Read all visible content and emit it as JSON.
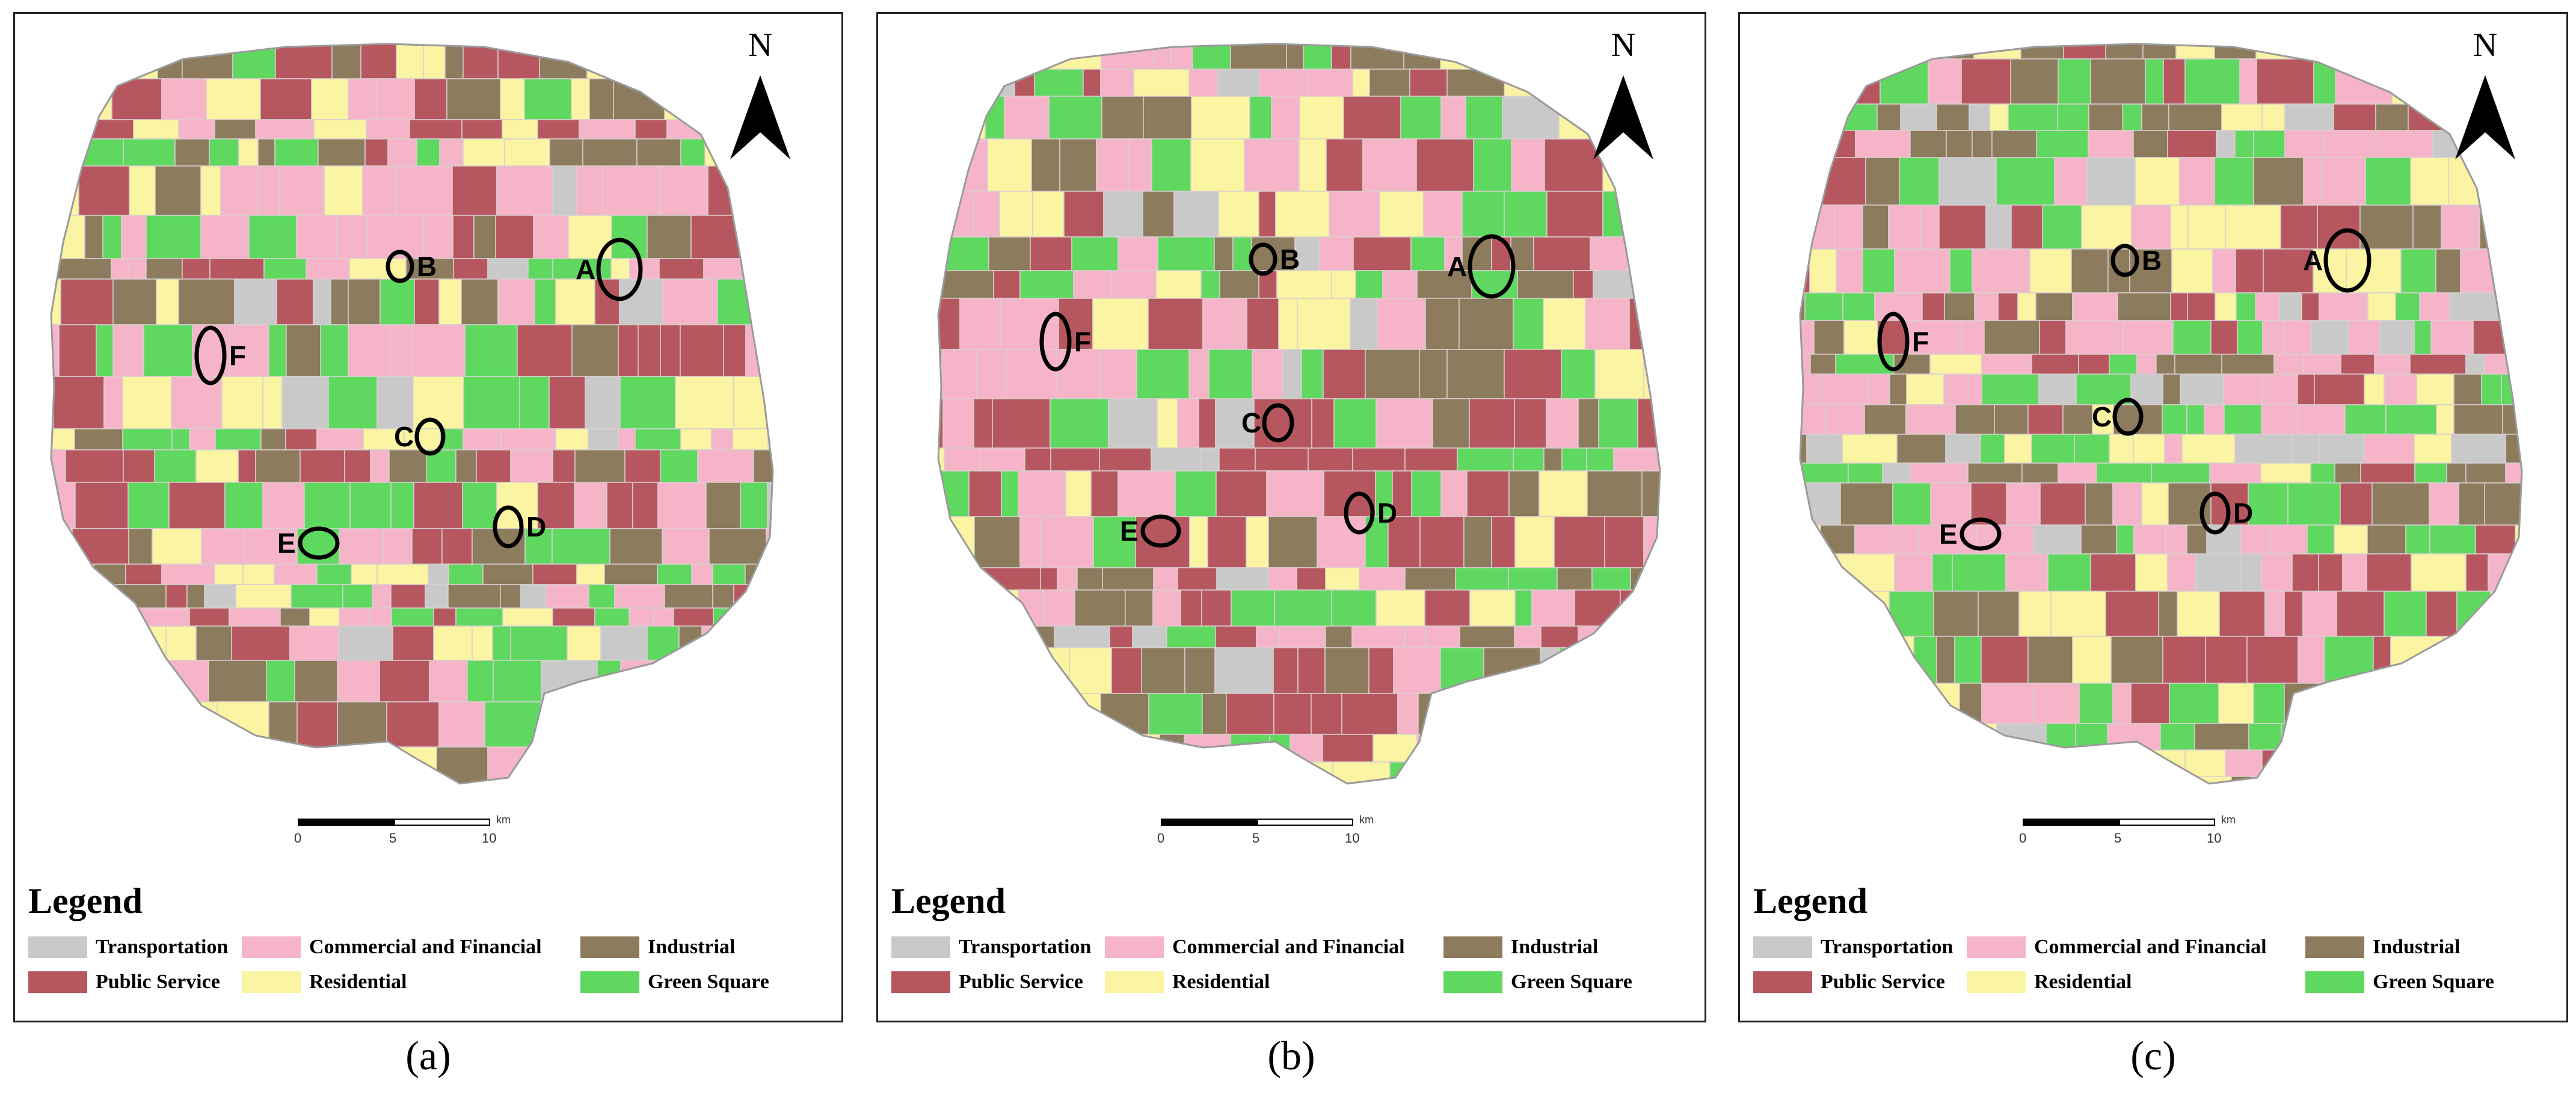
{
  "panels": [
    {
      "id": "a",
      "caption": "(a)",
      "north": "N"
    },
    {
      "id": "b",
      "caption": "(b)",
      "north": "N"
    },
    {
      "id": "c",
      "caption": "(c)",
      "north": "N"
    }
  ],
  "legend": {
    "title": "Legend",
    "items": [
      {
        "label": "Transportation",
        "color": "#c9c9c9"
      },
      {
        "label": "Commercial and Financial",
        "color": "#f6b4c8"
      },
      {
        "label": "Industrial",
        "color": "#8c7b5c"
      },
      {
        "label": "Public Service",
        "color": "#b6575f"
      },
      {
        "label": "Residential",
        "color": "#fbf4a2"
      },
      {
        "label": "Green Square",
        "color": "#5fd860"
      }
    ]
  },
  "scale_bar": {
    "ticks": [
      "0",
      "5",
      "10"
    ],
    "unit": "km"
  },
  "site_labels": [
    "A",
    "B",
    "C",
    "D",
    "E",
    "F"
  ]
}
